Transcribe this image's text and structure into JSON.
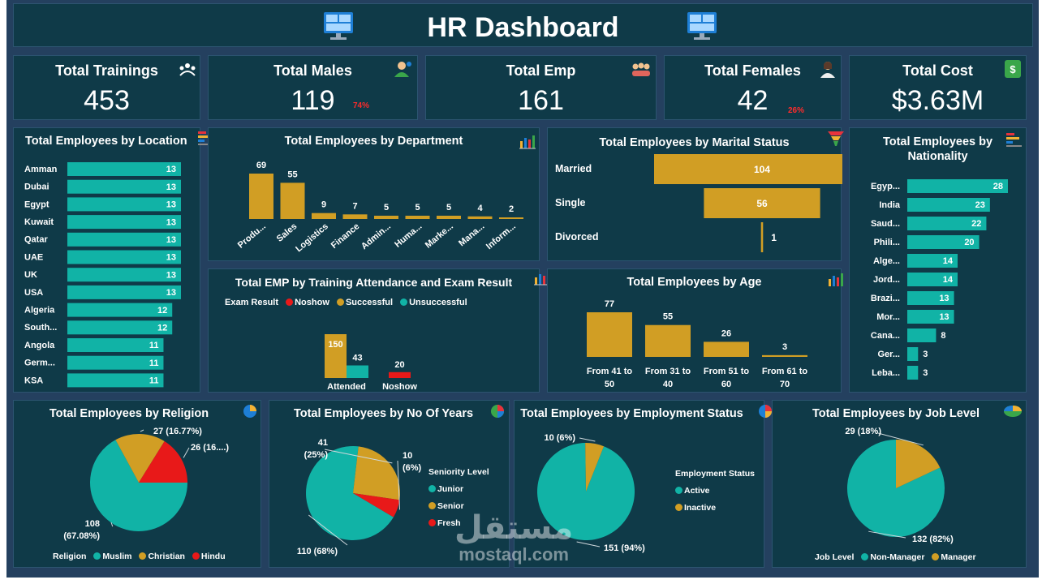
{
  "header": {
    "title": "HR Dashboard"
  },
  "kpis": {
    "trainings": {
      "label": "Total Trainings",
      "value": "453"
    },
    "males": {
      "label": "Total Males",
      "value": "119",
      "pct": "74%"
    },
    "emp": {
      "label": "Total Emp",
      "value": "161"
    },
    "females": {
      "label": "Total Females",
      "value": "42",
      "pct": "26%"
    },
    "cost": {
      "label": "Total Cost",
      "value": "$3.63M"
    }
  },
  "colors": {
    "gold": "#d19e24",
    "teal": "#11b3a6",
    "red": "#e81919",
    "panel": "#0f3a48",
    "frame": "#24405f"
  },
  "chart_data": [
    {
      "id": "location",
      "type": "bar",
      "orientation": "horizontal",
      "title": "Total Employees by Location",
      "categories": [
        "Amman",
        "Dubai",
        "Egypt",
        "Kuwait",
        "Qatar",
        "UAE",
        "UK",
        "USA",
        "Algeria",
        "South...",
        "Angola",
        "Germ...",
        "KSA"
      ],
      "values": [
        13,
        13,
        13,
        13,
        13,
        13,
        13,
        13,
        12,
        12,
        11,
        11,
        11
      ]
    },
    {
      "id": "department",
      "type": "bar",
      "title": "Total Employees by Department",
      "categories": [
        "Produ...",
        "Sales",
        "Logistics",
        "Finance",
        "Admin...",
        "Huma...",
        "Marke...",
        "Mana...",
        "Inform..."
      ],
      "values": [
        69,
        55,
        9,
        7,
        5,
        5,
        5,
        4,
        2
      ]
    },
    {
      "id": "marital",
      "type": "bar",
      "orientation": "horizontal",
      "title": "Total Employees by Marital Status",
      "categories": [
        "Married",
        "Single",
        "Divorced"
      ],
      "values": [
        104,
        56,
        1
      ]
    },
    {
      "id": "nationality",
      "type": "bar",
      "orientation": "horizontal",
      "title": "Total Employees by Nationality",
      "categories": [
        "Egyp...",
        "India",
        "Saud...",
        "Phili...",
        "Alge...",
        "Jord...",
        "Brazi...",
        "Mor...",
        "Cana...",
        "Ger...",
        "Leba..."
      ],
      "values": [
        28,
        23,
        22,
        20,
        14,
        14,
        13,
        13,
        8,
        3,
        3
      ]
    },
    {
      "id": "training",
      "type": "bar",
      "title": "Total EMP by Training Attendance and Exam Result",
      "legend_title": "Exam Result",
      "categories": [
        "Attended",
        "Noshow"
      ],
      "series": [
        {
          "name": "Noshow",
          "values": [
            null,
            20
          ]
        },
        {
          "name": "Successful",
          "values": [
            150,
            null
          ]
        },
        {
          "name": "Unsuccessful",
          "values": [
            43,
            null
          ]
        }
      ]
    },
    {
      "id": "age",
      "type": "bar",
      "title": "Total Employees by Age",
      "categories": [
        "From 41 to 50",
        "From 31 to 40",
        "From 51 to 60",
        "From 61 to 70"
      ],
      "values": [
        77,
        55,
        26,
        3
      ]
    },
    {
      "id": "religion",
      "type": "pie",
      "title": "Total Employees by Religion",
      "legend_title": "Religion",
      "labels": [
        "Muslim",
        "Christian",
        "Hindu"
      ],
      "values": [
        108,
        27,
        26
      ],
      "slice_labels": [
        "108 (67.08%)",
        "27 (16.77%)",
        "26 (16....)"
      ]
    },
    {
      "id": "years",
      "type": "pie",
      "title": "Total Employees by No Of Years",
      "legend_title": "Seniority Level",
      "labels": [
        "Junior",
        "Senior",
        "Fresh"
      ],
      "values": [
        110,
        41,
        10
      ],
      "slice_labels": [
        "110 (68%)",
        "41 (25%)",
        "10 (6%)"
      ]
    },
    {
      "id": "employment",
      "type": "pie",
      "title": "Total Employees by Employment Status",
      "legend_title": "Employment Status",
      "labels": [
        "Active",
        "Inactive"
      ],
      "values": [
        151,
        10
      ],
      "slice_labels": [
        "151 (94%)",
        "10 (6%)"
      ]
    },
    {
      "id": "joblevel",
      "type": "pie",
      "title": "Total Employees by Job Level",
      "legend_title": "Job Level",
      "labels": [
        "Non-Manager",
        "Manager"
      ],
      "values": [
        132,
        29
      ],
      "slice_labels": [
        "132 (82%)",
        "29 (18%)"
      ]
    }
  ],
  "watermark": {
    "arabic": "مستقل",
    "latin": "mostaql.com"
  }
}
